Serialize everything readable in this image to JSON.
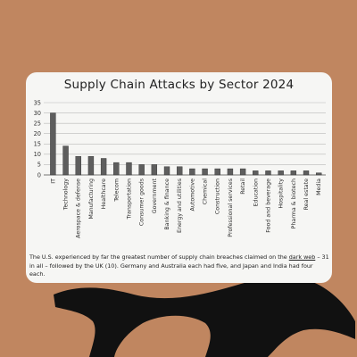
{
  "chart_data": {
    "type": "bar",
    "title": "Supply Chain Attacks by Sector 2024",
    "categories": [
      "IT",
      "Technology",
      "Aerospace & defense",
      "Manufacturing",
      "Healthcare",
      "Telecom",
      "Transportation",
      "Consumer goods",
      "Government",
      "Banking & finance",
      "Energy and utilities",
      "Automotive",
      "Chemical",
      "Construction",
      "Professional services",
      "Retail",
      "Education",
      "Food and beverage",
      "Hospitality",
      "Pharma & biotech",
      "Real estate",
      "Media"
    ],
    "values": [
      30,
      14,
      9,
      9,
      8,
      6,
      6,
      5,
      5,
      4,
      4,
      3,
      3,
      3,
      3,
      3,
      2,
      2,
      2,
      2,
      2,
      1
    ],
    "yticks": [
      0,
      5,
      10,
      15,
      20,
      25,
      30,
      35
    ],
    "ylim": [
      0,
      35
    ],
    "grid": true,
    "legend": false
  },
  "caption": {
    "part1": "The U.S. experienced by far the greatest number of supply chain breaches claimed on the ",
    "link": "dark web",
    "part2": " – 31 in all – followed by the UK (10). Germany and Australia each had five, and Japan and India had four each."
  }
}
